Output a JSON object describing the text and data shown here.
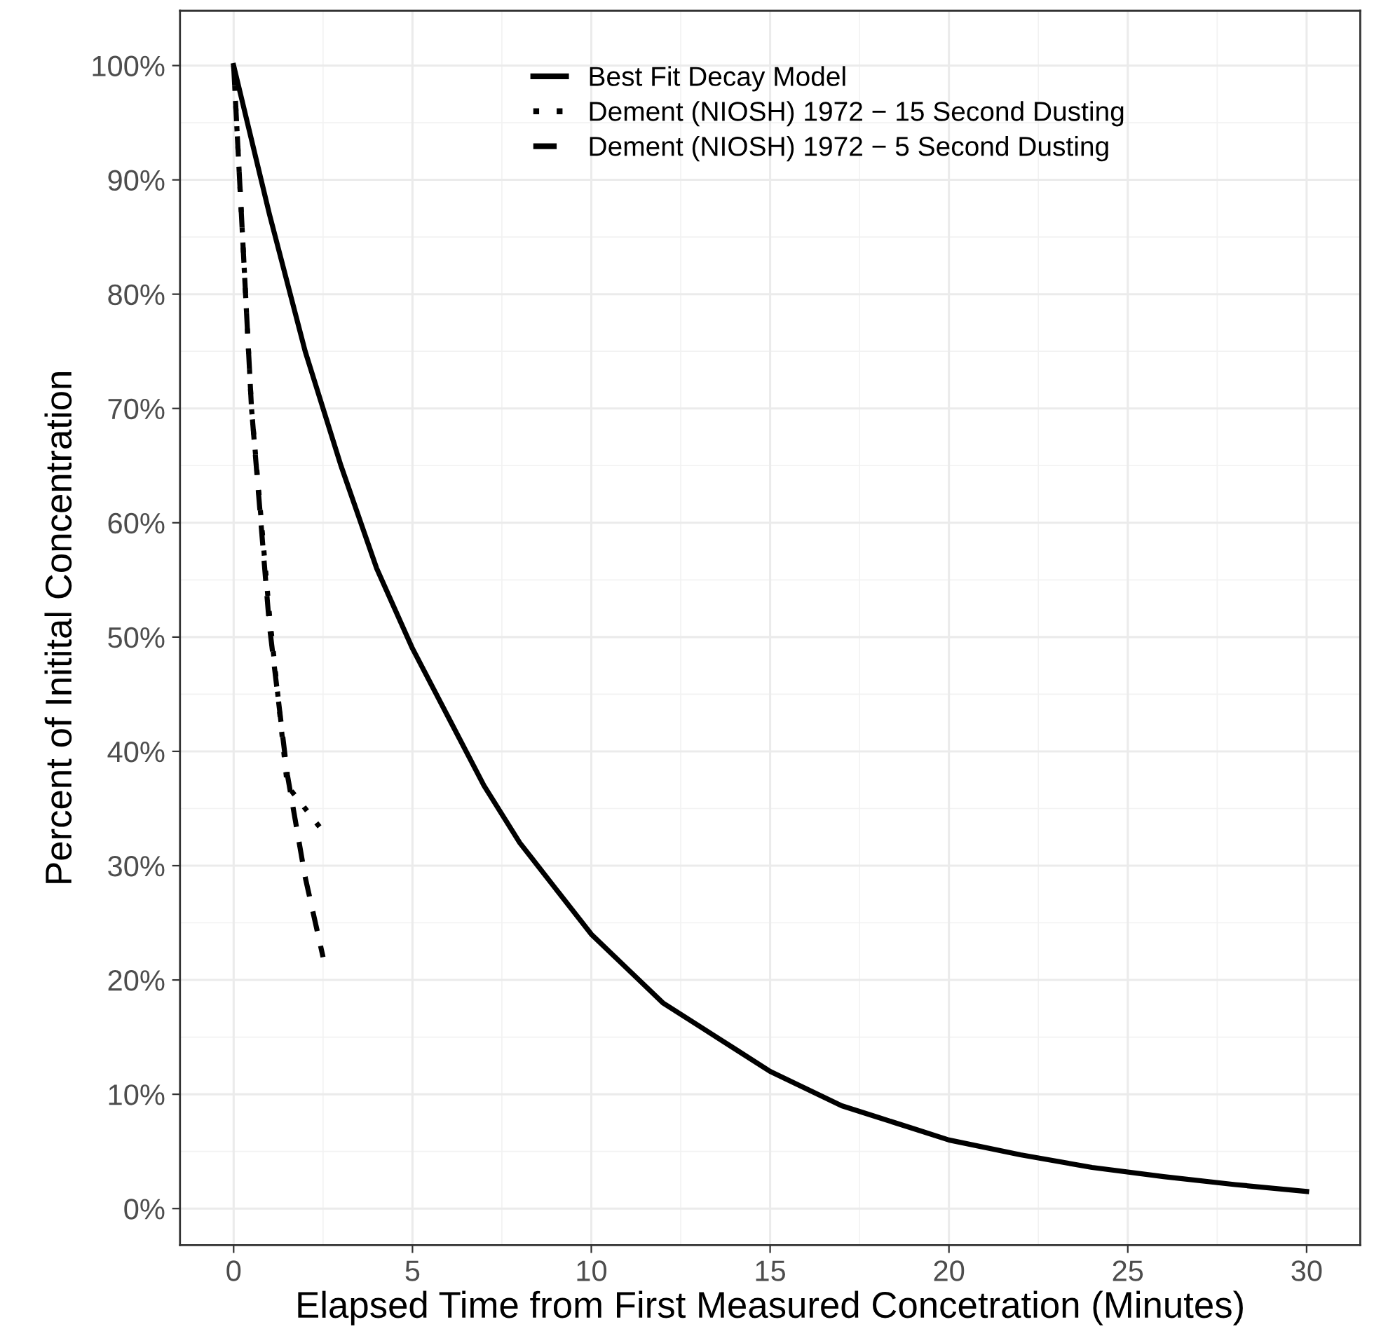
{
  "chart_data": {
    "type": "line",
    "xlabel": "Elapsed Time from First Measured Concetration (Minutes)",
    "ylabel": "Percent of Initital Concentration",
    "xlim": [
      -1.5,
      31.5
    ],
    "ylim": [
      -3.2,
      104.8
    ],
    "xticks": [
      0,
      5,
      10,
      15,
      20,
      25,
      30
    ],
    "yticks": [
      {
        "value": 0,
        "label": "0%"
      },
      {
        "value": 10,
        "label": "10%"
      },
      {
        "value": 20,
        "label": "20%"
      },
      {
        "value": 30,
        "label": "30%"
      },
      {
        "value": 40,
        "label": "40%"
      },
      {
        "value": 50,
        "label": "50%"
      },
      {
        "value": 60,
        "label": "60%"
      },
      {
        "value": 70,
        "label": "70%"
      },
      {
        "value": 80,
        "label": "80%"
      },
      {
        "value": 90,
        "label": "90%"
      },
      {
        "value": 100,
        "label": "100%"
      }
    ],
    "grid": true,
    "legend": "top",
    "marker": "none",
    "series": [
      {
        "name": "Best Fit Decay Model",
        "color": "#000000",
        "line_style": "solid",
        "x": [
          0,
          1,
          2,
          3,
          4,
          5,
          6,
          7,
          8,
          9,
          10,
          11,
          12,
          13,
          14,
          15,
          16,
          17,
          18,
          19,
          20,
          22,
          24,
          26,
          28,
          30
        ],
        "values": [
          100,
          87,
          75,
          65,
          56,
          49,
          43,
          37,
          32,
          28,
          24,
          21,
          18,
          16,
          14,
          12,
          10.5,
          9,
          8,
          7,
          6,
          4.7,
          3.6,
          2.8,
          2.1,
          1.5
        ]
      },
      {
        "name": "Dement (NIOSH) 1972 − 15 Second Dusting",
        "color": "#000000",
        "line_style": "dotted",
        "x": [
          0,
          0.5,
          1,
          1.5,
          2,
          2.5
        ],
        "values": [
          100,
          70,
          52,
          37,
          35,
          33
        ]
      },
      {
        "name": "Dement (NIOSH) 1972 − 5 Second Dusting",
        "color": "#000000",
        "line_style": "dashed",
        "x": [
          0,
          0.5,
          1,
          1.5,
          2,
          2.5
        ],
        "values": [
          100,
          70,
          51,
          38,
          29,
          22
        ]
      }
    ]
  }
}
